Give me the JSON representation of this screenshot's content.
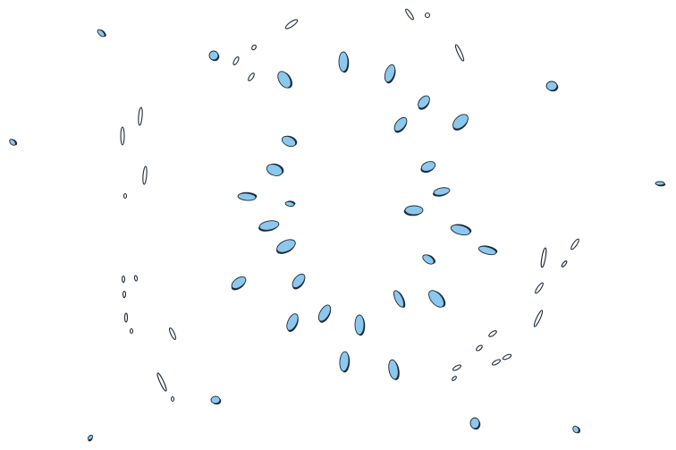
{
  "scene": {
    "background_color": "#ffffff",
    "drop_color": "#8cc8ee",
    "outline_color": "#1f2d3a",
    "icon": "water-splash-droplets"
  }
}
